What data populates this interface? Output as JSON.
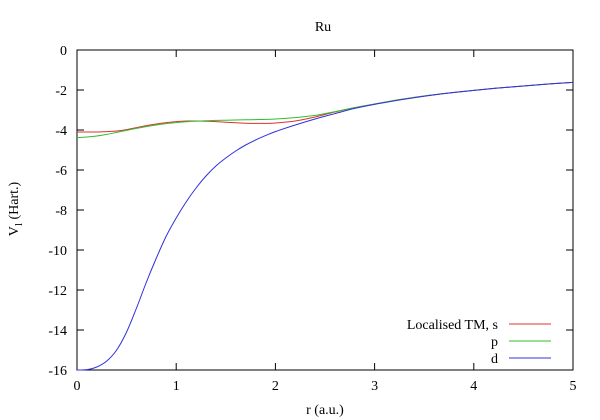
{
  "chart_data": {
    "type": "line",
    "title": "Ru",
    "xlabel": "r (a.u.)",
    "ylabel": "V",
    "ylabel_sub": "l",
    "ylabel_suffix": " (Hart.)",
    "xlim": [
      0,
      5
    ],
    "ylim": [
      -16,
      0
    ],
    "xticks": [
      0,
      1,
      2,
      3,
      4,
      5
    ],
    "yticks": [
      0,
      -2,
      -4,
      -6,
      -8,
      -10,
      -12,
      -14,
      -16
    ],
    "grid": false,
    "legend_position": "bottom-right",
    "series": [
      {
        "name": "Localised TM, s",
        "color": "#e0302f",
        "x": [
          0,
          0.1,
          0.2,
          0.3,
          0.4,
          0.5,
          0.6,
          0.7,
          0.8,
          0.9,
          1.0,
          1.1,
          1.2,
          1.3,
          1.4,
          1.5,
          1.6,
          1.7,
          1.8,
          1.9,
          2.0,
          2.2,
          2.4,
          2.6,
          2.8,
          3.0,
          3.25,
          3.5,
          3.75,
          4.0,
          4.25,
          4.5,
          4.75,
          5.0
        ],
        "y": [
          -4.1,
          -4.1,
          -4.1,
          -4.08,
          -4.05,
          -3.98,
          -3.88,
          -3.78,
          -3.7,
          -3.63,
          -3.58,
          -3.55,
          -3.55,
          -3.56,
          -3.58,
          -3.61,
          -3.64,
          -3.66,
          -3.67,
          -3.67,
          -3.65,
          -3.55,
          -3.35,
          -3.1,
          -2.88,
          -2.7,
          -2.48,
          -2.3,
          -2.15,
          -2.02,
          -1.9,
          -1.8,
          -1.7,
          -1.62
        ]
      },
      {
        "name": "p",
        "color": "#2fbf2f",
        "x": [
          0,
          0.1,
          0.2,
          0.3,
          0.4,
          0.5,
          0.6,
          0.7,
          0.8,
          0.9,
          1.0,
          1.1,
          1.2,
          1.3,
          1.4,
          1.5,
          1.6,
          1.7,
          1.8,
          1.9,
          2.0,
          2.2,
          2.4,
          2.6,
          2.8,
          3.0,
          3.25,
          3.5,
          3.75,
          4.0,
          4.25,
          4.5,
          4.75,
          5.0
        ],
        "y": [
          -4.38,
          -4.35,
          -4.3,
          -4.22,
          -4.12,
          -4.02,
          -3.92,
          -3.83,
          -3.75,
          -3.68,
          -3.63,
          -3.59,
          -3.56,
          -3.54,
          -3.52,
          -3.51,
          -3.5,
          -3.49,
          -3.48,
          -3.47,
          -3.45,
          -3.38,
          -3.27,
          -3.08,
          -2.88,
          -2.7,
          -2.48,
          -2.3,
          -2.15,
          -2.02,
          -1.9,
          -1.8,
          -1.7,
          -1.62
        ]
      },
      {
        "name": "d",
        "color": "#3030e0",
        "x": [
          0,
          0.1,
          0.2,
          0.3,
          0.4,
          0.5,
          0.6,
          0.7,
          0.8,
          0.9,
          1.0,
          1.1,
          1.2,
          1.3,
          1.4,
          1.5,
          1.6,
          1.7,
          1.8,
          1.9,
          2.0,
          2.2,
          2.4,
          2.6,
          2.8,
          3.0,
          3.25,
          3.5,
          3.75,
          4.0,
          4.25,
          4.5,
          4.75,
          5.0
        ],
        "y": [
          -16.0,
          -15.98,
          -15.85,
          -15.55,
          -15.0,
          -14.1,
          -12.9,
          -11.6,
          -10.4,
          -9.3,
          -8.4,
          -7.6,
          -6.9,
          -6.3,
          -5.8,
          -5.4,
          -5.05,
          -4.75,
          -4.5,
          -4.28,
          -4.08,
          -3.75,
          -3.45,
          -3.18,
          -2.92,
          -2.72,
          -2.5,
          -2.31,
          -2.15,
          -2.02,
          -1.9,
          -1.8,
          -1.7,
          -1.62
        ]
      }
    ]
  }
}
